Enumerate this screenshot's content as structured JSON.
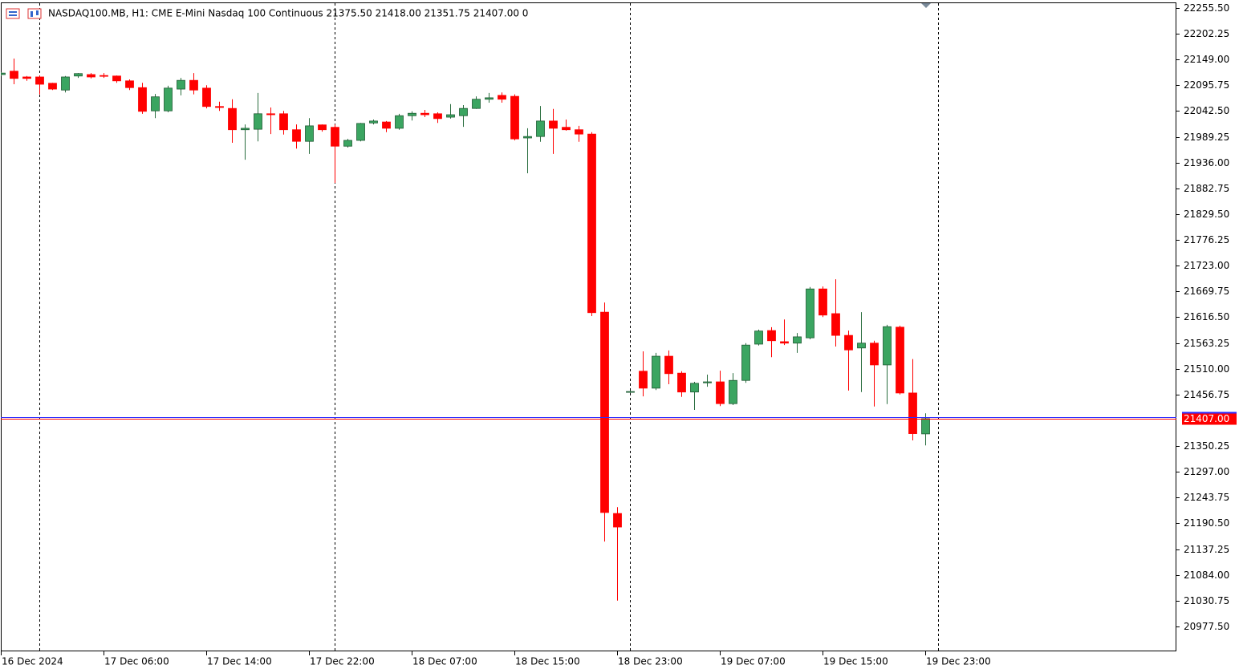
{
  "chart_data": {
    "type": "candlestick",
    "title": "NASDAQ100.MB, H1:  CME E-Mini Nasdaq 100 Continuous  21375.50 21418.00 21351.75 21407.00  0",
    "categories": [
      "16 Dec 2024",
      null,
      null,
      null,
      null,
      null,
      null,
      null,
      "17 Dec 06:00",
      null,
      null,
      null,
      null,
      null,
      null,
      null,
      "17 Dec 14:00",
      null,
      null,
      null,
      null,
      null,
      null,
      null,
      "17 Dec 22:00",
      null,
      null,
      null,
      null,
      null,
      null,
      null,
      "18 Dec 07:00",
      null,
      null,
      null,
      null,
      null,
      null,
      null,
      "18 Dec 15:00",
      null,
      null,
      null,
      null,
      null,
      null,
      null,
      "18 Dec 23:00",
      null,
      null,
      null,
      null,
      null,
      null,
      null,
      "19 Dec 07:00",
      null,
      null,
      null,
      null,
      null,
      null,
      null,
      "19 Dec 15:00",
      null,
      null,
      null,
      null,
      null,
      null,
      null,
      "19 Dec 23:00"
    ],
    "open": [
      22118,
      22125,
      22113,
      22113,
      22100,
      22086,
      22115,
      22118,
      22116,
      22115,
      22105,
      22091,
      22043,
      22043,
      22088,
      22106,
      22090,
      22052,
      22048,
      22004,
      22005,
      22037,
      22037,
      22004,
      21980,
      22014,
      22009,
      21970,
      21982,
      22018,
      22020,
      22007,
      22033,
      22038,
      22037,
      22030,
      22033,
      22048,
      22067,
      22075,
      22073,
      21987,
      21990,
      22022,
      22009,
      22004,
      21995,
      21627,
      21211,
      21462,
      21505,
      21470,
      21536,
      21501,
      21462,
      21481,
      21483,
      21438,
      21486,
      21561,
      21589,
      21566,
      21563,
      21574,
      21675,
      21624,
      21579,
      21553,
      21563,
      21518,
      21596,
      21460,
      21375.5
    ],
    "high": [
      22123,
      22151,
      22115,
      22116,
      22101,
      22115,
      22121,
      22121,
      22121,
      22116,
      22108,
      22101,
      22078,
      22095,
      22111,
      22121,
      22096,
      22062,
      22067,
      22015,
      22080,
      22050,
      22043,
      22015,
      22028,
      22015,
      22015,
      21985,
      22018,
      22025,
      22022,
      22037,
      22042,
      22045,
      22040,
      22057,
      22055,
      22073,
      22080,
      22081,
      22077,
      22007,
      22053,
      22047,
      22025,
      22012,
      21999,
      21647,
      21224,
      21465,
      21546,
      21543,
      21548,
      21505,
      21483,
      21498,
      21506,
      21501,
      21563,
      21591,
      21596,
      21612,
      21584,
      21679,
      21680,
      21695,
      21589,
      21627,
      21568,
      21601,
      21599,
      21530,
      21418
    ],
    "low": [
      22115,
      22098,
      22105,
      22077,
      22086,
      22081,
      22111,
      22110,
      22111,
      22101,
      22086,
      22037,
      22028,
      22040,
      22075,
      22077,
      22048,
      22043,
      21977,
      21942,
      21980,
      21995,
      21994,
      21965,
      21954,
      22000,
      21894,
      21967,
      21980,
      22015,
      21999,
      22004,
      22023,
      22030,
      22018,
      22027,
      22010,
      22047,
      22060,
      22060,
      21982,
      21914,
      21979,
      21954,
      22002,
      21979,
      21619,
      21153,
      21031,
      21460,
      21453,
      21466,
      21478,
      21452,
      21425,
      21473,
      21433,
      21435,
      21481,
      21558,
      21534,
      21559,
      21543,
      21571,
      21617,
      21556,
      21465,
      21462,
      21432,
      21437,
      21457,
      21362,
      21351.75
    ],
    "close": [
      22121,
      22110,
      22110,
      22098,
      22088,
      22113,
      22120,
      22113,
      22115,
      22105,
      22091,
      22042,
      22072,
      22090,
      22106,
      22086,
      22052,
      22050,
      22004,
      22007,
      22037,
      22035,
      22004,
      21980,
      22012,
      22004,
      21970,
      21982,
      22017,
      22022,
      22007,
      22033,
      22038,
      22035,
      22027,
      22035,
      22048,
      22067,
      22070,
      22067,
      21985,
      21990,
      22022,
      22007,
      22004,
      21995,
      21626,
      21213,
      21183,
      21463,
      21470,
      21536,
      21500,
      21462,
      21480,
      21483,
      21438,
      21486,
      21559,
      21588,
      21568,
      21563,
      21576,
      21675,
      21621,
      21579,
      21549,
      21563,
      21518,
      21597,
      21460,
      21376,
      21407
    ],
    "up_color": "#3ba561",
    "down_color": "#ff0000",
    "last_price": {
      "value": 21407,
      "label": "21407.00"
    },
    "ylim": [
      20926.1,
      22267.1
    ],
    "yticks": [
      {
        "value": 22255.5,
        "label": "22255.50"
      },
      {
        "value": 22202.25,
        "label": "22202.25"
      },
      {
        "value": 22149,
        "label": "22149.00"
      },
      {
        "value": 22095.75,
        "label": "22095.75"
      },
      {
        "value": 22042.5,
        "label": "22042.50"
      },
      {
        "value": 21989.25,
        "label": "21989.25"
      },
      {
        "value": 21936,
        "label": "21936.00"
      },
      {
        "value": 21882.75,
        "label": "21882.75"
      },
      {
        "value": 21829.5,
        "label": "21829.50"
      },
      {
        "value": 21776.25,
        "label": "21776.25"
      },
      {
        "value": 21723,
        "label": "21723.00"
      },
      {
        "value": 21669.75,
        "label": "21669.75"
      },
      {
        "value": 21616.5,
        "label": "21616.50"
      },
      {
        "value": 21563.25,
        "label": "21563.25"
      },
      {
        "value": 21510,
        "label": "21510.00"
      },
      {
        "value": 21456.75,
        "label": "21456.75"
      },
      {
        "value": 21350.25,
        "label": "21350.25"
      },
      {
        "value": 21297,
        "label": "21297.00"
      },
      {
        "value": 21243.75,
        "label": "21243.75"
      },
      {
        "value": 21190.5,
        "label": "21190.50"
      },
      {
        "value": 21137.25,
        "label": "21137.25"
      },
      {
        "value": 21084,
        "label": "21084.00"
      },
      {
        "value": 21030.75,
        "label": "21030.75"
      },
      {
        "value": 20977.5,
        "label": "20977.50"
      }
    ]
  }
}
